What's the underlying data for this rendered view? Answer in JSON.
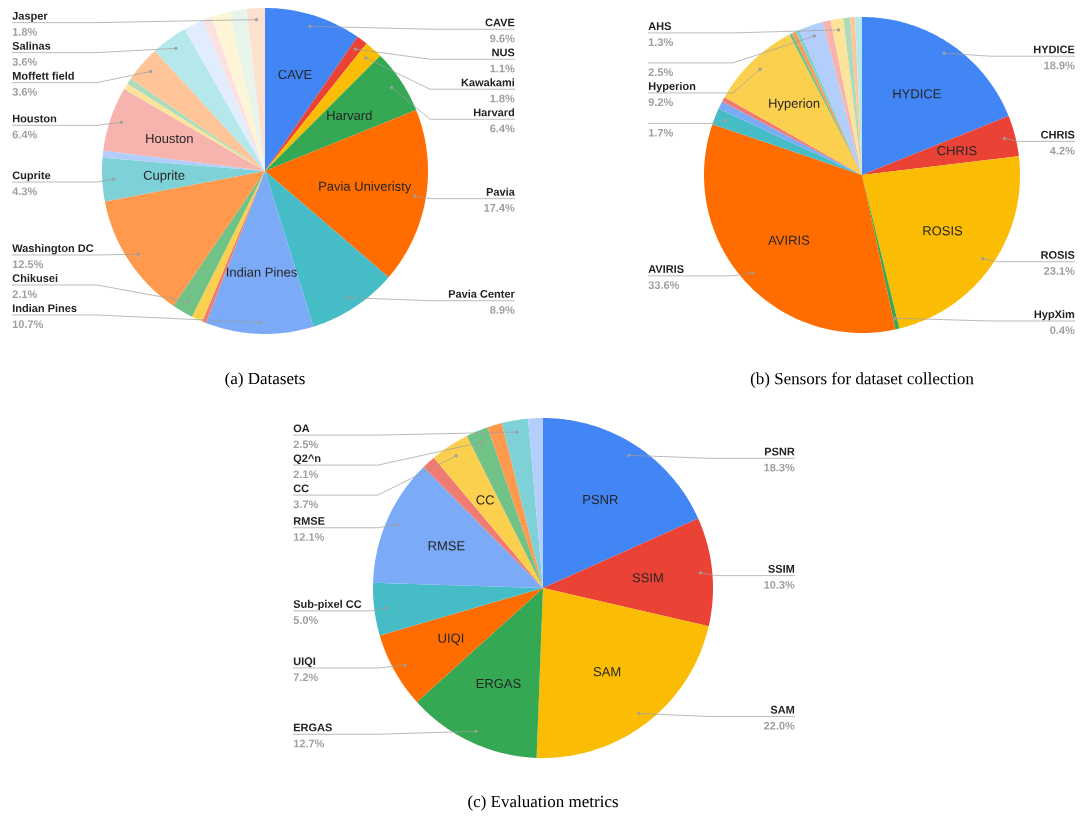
{
  "chart_data": [
    {
      "type": "pie",
      "title": "(a) Datasets",
      "categories": [
        "CAVE",
        "NUS",
        "Kawakami",
        "Harvard",
        "Pavia",
        "Pavia Center",
        "Indian Pines",
        null,
        null,
        "Chikusei",
        "Washington DC",
        "Cuprite",
        null,
        "Houston",
        null,
        null,
        "Moffett field",
        "Salinas",
        null,
        null,
        null,
        null,
        "Jasper"
      ],
      "values": [
        9.6,
        1.1,
        1.8,
        6.4,
        17.4,
        8.9,
        10.7,
        0.4,
        1.1,
        2.1,
        12.5,
        4.3,
        0.7,
        6.4,
        0.6,
        0.6,
        3.6,
        3.6,
        2.0,
        0.9,
        1.8,
        1.7,
        1.8
      ],
      "value_labels": [
        "9.6%",
        "1.1%",
        "1.8%",
        "6.4%",
        "17.4%",
        "8.9%",
        "10.7%",
        null,
        null,
        "2.1%",
        "12.5%",
        "4.3%",
        null,
        "6.4%",
        null,
        null,
        "3.6%",
        "3.6%",
        null,
        null,
        null,
        null,
        "1.8%"
      ],
      "colors": [
        "#4285f4",
        "#ea4335",
        "#fbbc04",
        "#34a853",
        "#ff6d01",
        "#46bdc6",
        "#7baaf7",
        "#f07b72",
        "#fcd04f",
        "#71c287",
        "#ff994d",
        "#7ed1d7",
        "#b3cefb",
        "#f7b4ae",
        "#fde49b",
        "#aedcba",
        "#ffc599",
        "#b5e8eb",
        "#e1ecfd",
        "#fbe1df",
        "#fef5d7",
        "#e7f5eb",
        "#fde0cf"
      ],
      "annotations": [
        {
          "text": "CAVE",
          "x": "CAVE"
        },
        {
          "text": "Harvard",
          "x": "Harvard"
        },
        {
          "text": "Pavia Univeristy",
          "x": "Pavia"
        },
        {
          "text": "Indian Pines",
          "x": "Indian Pines"
        },
        {
          "text": "Cuprite",
          "x": "Cuprite"
        },
        {
          "text": "Houston",
          "x": "Houston"
        }
      ]
    },
    {
      "type": "pie",
      "title": "(b) Sensors for dataset collection",
      "categories": [
        "HYDICE",
        "CHRIS",
        "ROSIS",
        "HypXim",
        "AVIRIS",
        null,
        null,
        null,
        "Hyperion",
        null,
        null,
        null,
        null,
        null,
        "AHS",
        null,
        null,
        null
      ],
      "values": [
        18.9,
        4.2,
        23.1,
        0.4,
        33.6,
        1.7,
        0.8,
        0.5,
        9.2,
        0.3,
        0.4,
        0.4,
        2.5,
        0.8,
        1.3,
        0.7,
        0.5,
        0.7
      ],
      "value_labels": [
        "18.9%",
        "4.2%",
        "23.1%",
        "0.4%",
        "33.6%",
        "1.7%",
        null,
        null,
        "9.2%",
        null,
        null,
        null,
        "2.5%",
        null,
        "1.3%",
        null,
        null,
        null
      ],
      "colors": [
        "#4285f4",
        "#ea4335",
        "#fbbc04",
        "#34a853",
        "#ff6d01",
        "#46bdc6",
        "#7baaf7",
        "#f07b72",
        "#fcd04f",
        "#71c287",
        "#ff994d",
        "#7ed1d7",
        "#b3cefb",
        "#f7b4ae",
        "#fde49b",
        "#aedcba",
        "#ffc599",
        "#b5e8eb"
      ],
      "annotations": [
        {
          "text": "HYDICE",
          "x": "HYDICE"
        },
        {
          "text": "CHRIS",
          "x": "CHRIS"
        },
        {
          "text": "ROSIS",
          "x": "ROSIS"
        },
        {
          "text": "AVIRIS",
          "x": "AVIRIS"
        },
        {
          "text": "Hyperion",
          "x": "Hyperion"
        }
      ]
    },
    {
      "type": "pie",
      "title": "(c) Evaluation metrics",
      "categories": [
        "PSNR",
        "SSIM",
        "SAM",
        "ERGAS",
        "UIQI",
        "Sub-pixel CC",
        "RMSE",
        null,
        "CC",
        "Q2^n",
        null,
        "OA",
        null
      ],
      "values": [
        18.3,
        10.3,
        22.0,
        12.7,
        7.2,
        5.0,
        12.1,
        1.3,
        3.7,
        2.1,
        1.4,
        2.5,
        1.4
      ],
      "value_labels": [
        "18.3%",
        "10.3%",
        "22.0%",
        "12.7%",
        "7.2%",
        "5.0%",
        "12.1%",
        null,
        "3.7%",
        "2.1%",
        null,
        "2.5%",
        null
      ],
      "colors": [
        "#4285f4",
        "#ea4335",
        "#fbbc04",
        "#34a853",
        "#ff6d01",
        "#46bdc6",
        "#7baaf7",
        "#f07b72",
        "#fcd04f",
        "#71c287",
        "#ff994d",
        "#7ed1d7",
        "#b3cefb"
      ],
      "annotations": [
        {
          "text": "PSNR",
          "x": "PSNR"
        },
        {
          "text": "SSIM",
          "x": "SSIM"
        },
        {
          "text": "SAM",
          "x": "SAM"
        },
        {
          "text": "ERGAS",
          "x": "ERGAS"
        },
        {
          "text": "UIQI",
          "x": "UIQI"
        },
        {
          "text": "RMSE",
          "x": "RMSE"
        },
        {
          "text": "CC",
          "x": "CC"
        }
      ]
    }
  ]
}
